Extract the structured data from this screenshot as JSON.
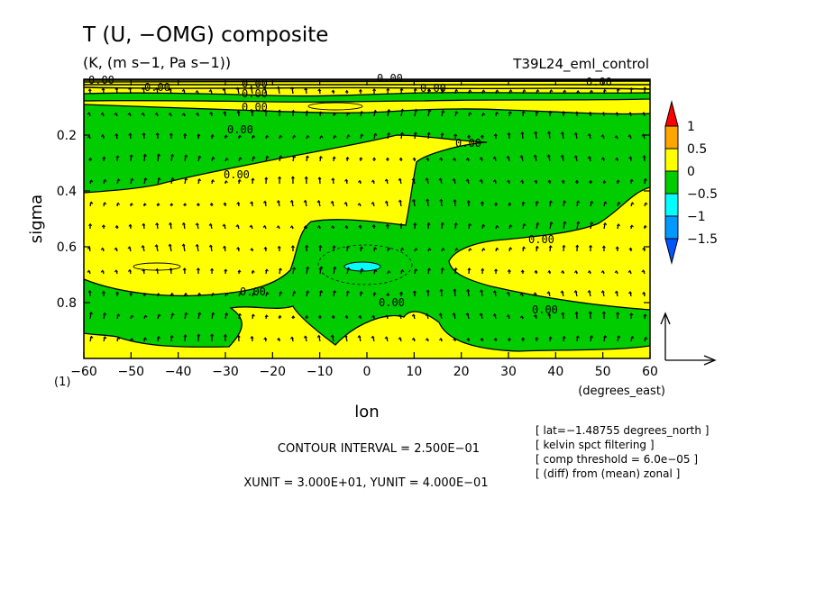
{
  "chart_data": {
    "type": "contour",
    "title": "T (U, −OMG) composite",
    "units": "(K, (m s−1, Pa s−1))",
    "experiment": "T39L24_eml_control",
    "xlabel": "lon",
    "xunits": "(degrees_east)",
    "ylabel": "sigma",
    "corner_label": "(1)",
    "xlim": [
      -60,
      60
    ],
    "ylim": [
      1.0,
      0.0
    ],
    "x_ticks": [
      -60,
      -50,
      -40,
      -30,
      -20,
      -10,
      0,
      10,
      20,
      30,
      40,
      50,
      60
    ],
    "x_tick_labels": [
      "−60",
      "−50",
      "−40",
      "−30",
      "−20",
      "−10",
      "0",
      "10",
      "20",
      "30",
      "40",
      "50",
      "60"
    ],
    "y_ticks": [
      0.2,
      0.4,
      0.6,
      0.8
    ],
    "y_tick_labels": [
      "0.2",
      "0.4",
      "0.6",
      "0.8"
    ],
    "contour_label": "0.00",
    "colorbar": {
      "levels": [
        "1",
        "0.5",
        "0",
        "−0.5",
        "−1",
        "−1.5"
      ],
      "colors": [
        "#ff0000",
        "#ffa500",
        "#ffff00",
        "#00cc00",
        "#00ffff",
        "#0099ff",
        "#0055ff"
      ]
    },
    "contour_interval_text": "CONTOUR INTERVAL = 2.500E−01",
    "unit_text": "XUNIT = 3.000E+01, YUNIT = 4.000E−01",
    "info_lines": [
      "[ lat=−1.48755 degrees_north ]",
      "[ kelvin spct filtering ]",
      "[ comp threshold = 6.0e−05 ]",
      "[ (diff) from (mean) zonal ]"
    ],
    "colors": {
      "positive": "#ffff00",
      "negative": "#00cc00",
      "min": "#00ffff"
    }
  }
}
